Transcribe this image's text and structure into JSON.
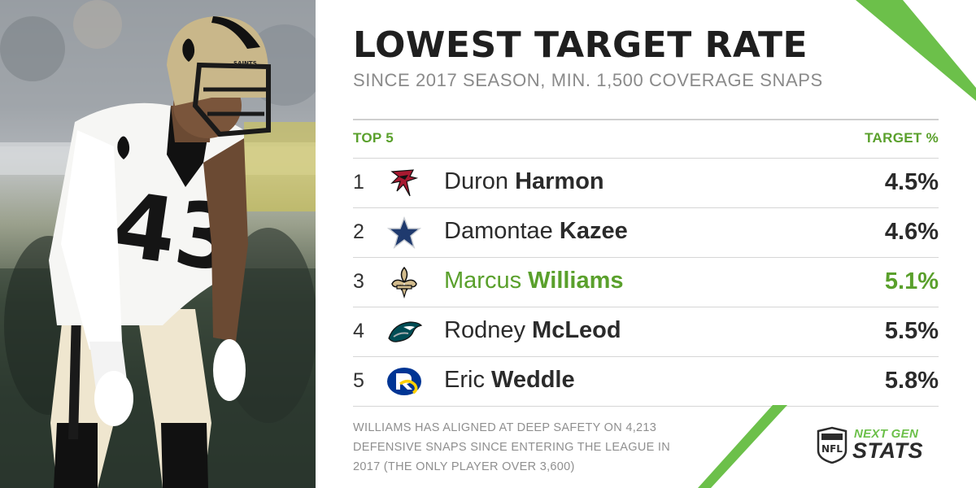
{
  "title": "LOWEST TARGET RATE",
  "subtitle": "SINCE 2017 SEASON, MIN. 1,500 COVERAGE SNAPS",
  "table": {
    "left_header": "TOP 5",
    "right_header": "TARGET %",
    "rows": [
      {
        "rank": "1",
        "first": "Duron",
        "last": "Harmon",
        "pct": "4.5%",
        "team_logo": "falcons-logo",
        "highlight": false
      },
      {
        "rank": "2",
        "first": "Damontae",
        "last": "Kazee",
        "pct": "4.6%",
        "team_logo": "cowboys-logo",
        "highlight": false
      },
      {
        "rank": "3",
        "first": "Marcus",
        "last": "Williams",
        "pct": "5.1%",
        "team_logo": "saints-logo",
        "highlight": true
      },
      {
        "rank": "4",
        "first": "Rodney",
        "last": "McLeod",
        "pct": "5.5%",
        "team_logo": "eagles-logo",
        "highlight": false
      },
      {
        "rank": "5",
        "first": "Eric",
        "last": "Weddle",
        "pct": "5.8%",
        "team_logo": "rams-logo",
        "highlight": false
      }
    ]
  },
  "footnote": "WILLIAMS HAS ALIGNED AT DEEP SAFETY ON 4,213 DEFENSIVE SNAPS SINCE ENTERING THE LEAGUE IN 2017 (THE ONLY PLAYER OVER 3,600)",
  "brand": {
    "shield_text": "NFL",
    "line1": "NEXT GEN",
    "line2": "STATS"
  },
  "photo": {
    "jersey_number": "43",
    "helmet_text": "SAINTS"
  },
  "colors": {
    "accent_green": "#5aa02c",
    "stripe_green": "#6cc04a",
    "text_dark": "#2b2b2b",
    "text_gray": "#8a8a8a"
  }
}
